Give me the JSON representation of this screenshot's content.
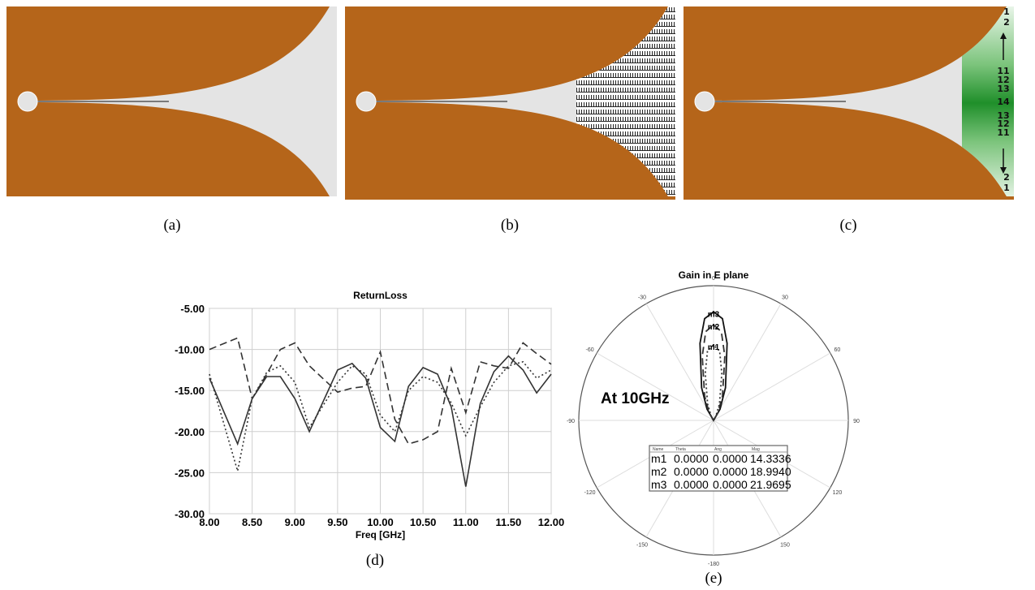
{
  "captions": [
    "(a)",
    "(b)",
    "(c)",
    "(d)",
    "(e)"
  ],
  "layer_labels": [
    "1",
    "2",
    "11",
    "12",
    "13",
    "14",
    "13",
    "12",
    "11",
    "2",
    "1"
  ],
  "chart_data": [
    {
      "type": "line",
      "title": "ReturnLoss",
      "x_label": "Freq [GHz]",
      "xlim": [
        8,
        12
      ],
      "ylim": [
        -30,
        -5
      ],
      "grid": true,
      "xticks": [
        {
          "value": 8,
          "label": "8.00"
        },
        {
          "value": 8.5,
          "label": "8.50"
        },
        {
          "value": 9,
          "label": "9.00"
        },
        {
          "value": 9.5,
          "label": "9.50"
        },
        {
          "value": 10,
          "label": "10.00"
        },
        {
          "value": 10.5,
          "label": "10.50"
        },
        {
          "value": 11,
          "label": "11.00"
        },
        {
          "value": 11.5,
          "label": "11.50"
        },
        {
          "value": 12,
          "label": "12.00"
        }
      ],
      "yticks": [
        {
          "value": -5,
          "label": "-5.00"
        },
        {
          "value": -10,
          "label": "-10.00"
        },
        {
          "value": -15,
          "label": "-15.00"
        },
        {
          "value": -20,
          "label": "-20.00"
        },
        {
          "value": -25,
          "label": "-25.00"
        },
        {
          "value": -30,
          "label": "-30.00"
        }
      ],
      "x": [
        8,
        8.33,
        8.5,
        8.67,
        8.83,
        9,
        9.17,
        9.5,
        9.67,
        9.83,
        10,
        10.17,
        10.33,
        10.5,
        10.67,
        10.83,
        11,
        11.17,
        11.33,
        11.5,
        11.67,
        11.83,
        12
      ],
      "series": [
        {
          "color": "#333333",
          "dash": "solid",
          "values": [
            -13.5,
            -21.5,
            -16,
            -13.3,
            -13.3,
            -16,
            -20,
            -12.5,
            -11.7,
            -13.5,
            -19.5,
            -21.2,
            -14.5,
            -12.2,
            -13,
            -17,
            -26.7,
            -16.6,
            -12.7,
            -10.8,
            -12.5,
            -15.3,
            -13
          ]
        },
        {
          "color": "#333333",
          "dash": "dashed",
          "values": [
            -10,
            -8.6,
            -16,
            -13,
            -10,
            -9.2,
            -12,
            -15.2,
            -14.7,
            -14.5,
            -10.3,
            -18.5,
            -21.5,
            -21,
            -20,
            -12.3,
            -17.7,
            -11.5,
            -12,
            -12.3,
            -9.2,
            -10.5,
            -11.8
          ]
        },
        {
          "color": "#333333",
          "dash": "dotted",
          "values": [
            -13,
            -24.8,
            -16,
            -12.8,
            -12,
            -14,
            -19.5,
            -14,
            -12,
            -13,
            -18,
            -20,
            -15,
            -13.3,
            -14,
            -16.5,
            -20.5,
            -17,
            -14,
            -12,
            -11.5,
            -13.5,
            -12.5
          ]
        }
      ]
    },
    {
      "type": "polar",
      "title": "Gain in E plane",
      "annotation": "At 10GHz",
      "rlim": [
        -3,
        28
      ],
      "thetaticks": [
        0,
        30,
        60,
        90,
        120,
        150,
        -180,
        -150,
        -120,
        -90,
        -60,
        -30
      ],
      "series": [
        {
          "color": "#111111",
          "dash": "solid",
          "theta": [
            -180,
            -90,
            -30,
            -20,
            -10,
            -5,
            0,
            5,
            10,
            20,
            30,
            90
          ],
          "values": [
            -3,
            -3,
            0,
            5,
            15,
            20.5,
            21.97,
            20.5,
            15,
            5,
            0,
            -3
          ]
        },
        {
          "color": "#333333",
          "dash": "dashed",
          "theta": [
            -180,
            -90,
            -30,
            -20,
            -10,
            -5,
            0,
            5,
            10,
            20,
            30,
            90
          ],
          "values": [
            -3,
            -3,
            -1,
            3,
            12,
            17.5,
            18.99,
            17.5,
            12,
            3,
            -1,
            -3
          ]
        },
        {
          "color": "#333333",
          "dash": "dotted",
          "theta": [
            -180,
            -90,
            -30,
            -20,
            -10,
            -5,
            0,
            5,
            10,
            20,
            30,
            90
          ],
          "values": [
            -3,
            -3,
            -2,
            1,
            8,
            13,
            14.33,
            13,
            8,
            1,
            -2,
            -3
          ]
        }
      ],
      "markers": [
        {
          "label": "m1",
          "theta": 0,
          "value": 14.3336
        },
        {
          "label": "m2",
          "theta": 0,
          "value": 18.994
        },
        {
          "label": "m3",
          "theta": 0,
          "value": 21.9695
        }
      ],
      "marker_table": {
        "header": [
          "Name",
          "Theta",
          "Ang",
          "Mag"
        ],
        "rows": [
          [
            "m1",
            "0.0000",
            "0.0000",
            "14.3336"
          ],
          [
            "m2",
            "0.0000",
            "0.0000",
            "18.9940"
          ],
          [
            "m3",
            "0.0000",
            "0.0000",
            "21.9695"
          ]
        ]
      }
    }
  ]
}
